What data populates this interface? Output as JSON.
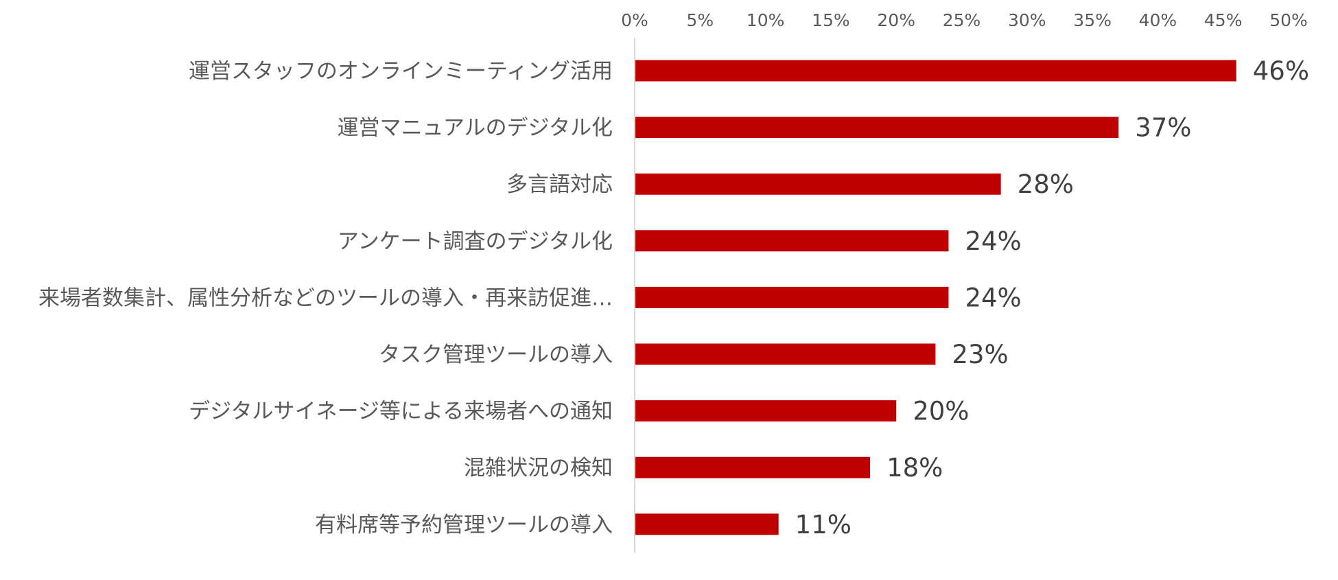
{
  "chart_data": {
    "type": "bar",
    "orientation": "horizontal",
    "categories": [
      "運営スタッフのオンラインミーティング活用",
      "運営マニュアルのデジタル化",
      "多言語対応",
      "アンケート調査のデジタル化",
      "来場者数集計、属性分析などのツールの導入・再来訪促進…",
      "タスク管理ツールの導入",
      "デジタルサイネージ等による来場者への通知",
      "混雑状況の検知",
      "有料席等予約管理ツールの導入"
    ],
    "values": [
      46,
      37,
      28,
      24,
      24,
      23,
      20,
      18,
      11
    ],
    "value_labels": [
      "46%",
      "37%",
      "28%",
      "24%",
      "24%",
      "23%",
      "20%",
      "18%",
      "11%"
    ],
    "xlim": [
      0,
      50
    ],
    "x_ticks": [
      0,
      5,
      10,
      15,
      20,
      25,
      30,
      35,
      40,
      45,
      50
    ],
    "x_tick_labels": [
      "0%",
      "5%",
      "10%",
      "15%",
      "20%",
      "25%",
      "30%",
      "35%",
      "40%",
      "45%",
      "50%"
    ],
    "x_axis_position": "top",
    "title": "",
    "xlabel": "",
    "ylabel": "",
    "grid": false,
    "legend": "none",
    "colors": {
      "bar": "#c00000",
      "axis_line": "#d9d9d9",
      "label_text": "#595959",
      "value_text": "#404040"
    }
  }
}
